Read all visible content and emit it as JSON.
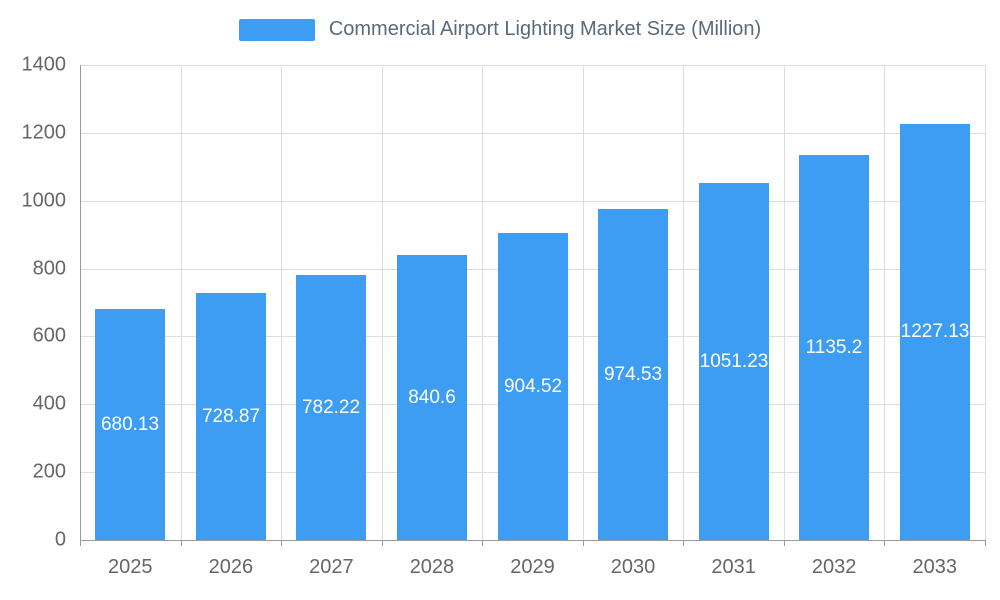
{
  "chart_data": {
    "type": "bar",
    "title": "Commercial Airport Lighting Market Size (Million)",
    "categories": [
      "2025",
      "2026",
      "2027",
      "2028",
      "2029",
      "2030",
      "2031",
      "2032",
      "2033"
    ],
    "values": [
      680.13,
      728.87,
      782.22,
      840.6,
      904.52,
      974.53,
      1051.23,
      1135.2,
      1227.13
    ],
    "value_labels": [
      "680.13",
      "728.87",
      "782.22",
      "840.6",
      "904.52",
      "974.53",
      "1051.23",
      "1135.2",
      "1227.13"
    ],
    "xlabel": "",
    "ylabel": "",
    "ylim": [
      0,
      1400
    ],
    "ytick_step": 200,
    "grid": true,
    "legend_position": "top-center",
    "bar_color": "#3D9DF3",
    "value_label_color": "#ffffff",
    "grid_color": "#dddddd",
    "axis_color": "#999999",
    "tick_label_color": "#666666",
    "title_color": "#5a6a7a"
  }
}
